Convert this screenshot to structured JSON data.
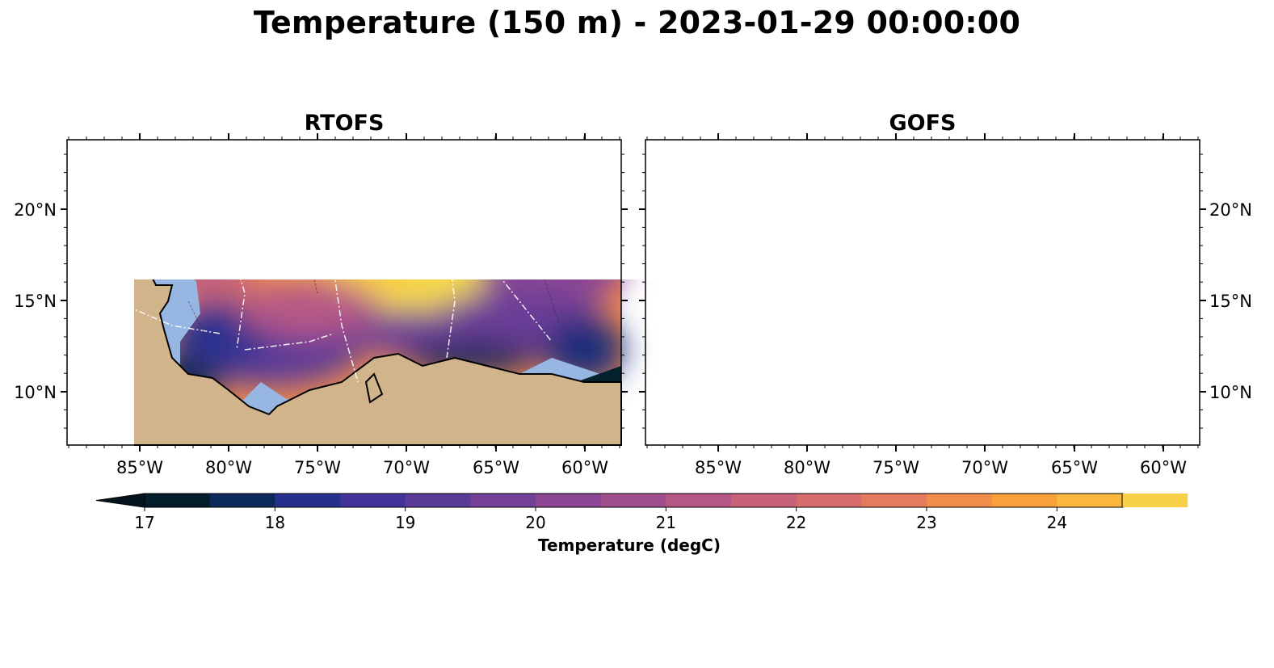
{
  "figure": {
    "title": "Temperature (150 m) - 2023-01-29 00:00:00"
  },
  "panels": [
    {
      "title": "RTOFS"
    },
    {
      "title": "GOFS"
    }
  ],
  "axes": {
    "lon_ticks": [
      "85°W",
      "80°W",
      "75°W",
      "70°W",
      "65°W",
      "60°W"
    ],
    "lat_ticks": [
      "20°N",
      "15°N",
      "10°N"
    ]
  },
  "colorbar": {
    "label": "Temperature (degC)",
    "min": 17,
    "max": 24.5,
    "step": 0.5,
    "extend": "both",
    "ticks": [
      "17",
      "18",
      "19",
      "20",
      "21",
      "22",
      "23",
      "24"
    ],
    "colors": [
      "#041d2b",
      "#0b2a5a",
      "#26308c",
      "#42339a",
      "#5a3b98",
      "#743f96",
      "#8c4794",
      "#a04f8e",
      "#b55886",
      "#c7627a",
      "#d66c6c",
      "#e67a5c",
      "#f28c4a",
      "#f9a03d",
      "#fcb73d",
      "#f9d149"
    ],
    "under_color": "#03141c",
    "over_color": "#e8f64c"
  },
  "map_colors": {
    "land": "#d2b48c",
    "shelf": "#97b6e1",
    "pacific": "#04212d",
    "coast": "#000000",
    "eez": "#ffffff"
  }
}
